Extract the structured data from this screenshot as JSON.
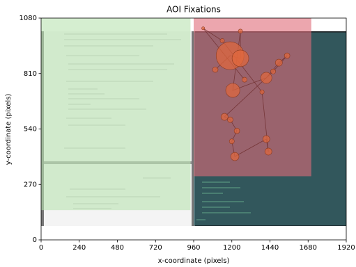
{
  "chart_data": {
    "type": "scatter",
    "title": "AOI Fixations",
    "x_label": "x-coordinate (pixels)",
    "y_label": "y-coordinate (pixels)",
    "xlim": [
      0,
      1920
    ],
    "ylim": [
      0,
      1080
    ],
    "xticks": [
      0,
      240,
      480,
      720,
      960,
      1200,
      1440,
      1680,
      1920
    ],
    "yticks": [
      0,
      270,
      540,
      810,
      1080
    ],
    "aois": [
      {
        "x": [
          0,
          940
        ],
        "y": [
          145,
          1080
        ],
        "color": "#b9e3b0"
      },
      {
        "x": [
          960,
          1920
        ],
        "y": [
          70,
          1010
        ],
        "color": "#3f7a80"
      },
      {
        "x": [
          960,
          1700
        ],
        "y": [
          310,
          1080
        ],
        "color": "#e06a78"
      }
    ],
    "series": [
      {
        "color": "#e2683c",
        "line_color": "#6b2a2a",
        "x": [
          1096,
          1189,
          1254,
          1254,
          1206,
          1417,
          1496,
          1548,
          1460,
          1154,
          1190,
          1232,
          1200,
          1219,
          1417,
          1430,
          1390,
          1140,
          1020,
          1280
        ],
        "y": [
          829,
          897,
          884,
          1016,
          728,
          789,
          863,
          897,
          820,
          599,
          585,
          531,
          480,
          406,
          491,
          430,
          720,
          970,
          1030,
          780
        ],
        "size": [
          50,
          1250,
          450,
          30,
          320,
          200,
          80,
          50,
          40,
          80,
          50,
          50,
          40,
          110,
          80,
          80,
          30,
          30,
          15,
          40
        ]
      }
    ]
  }
}
